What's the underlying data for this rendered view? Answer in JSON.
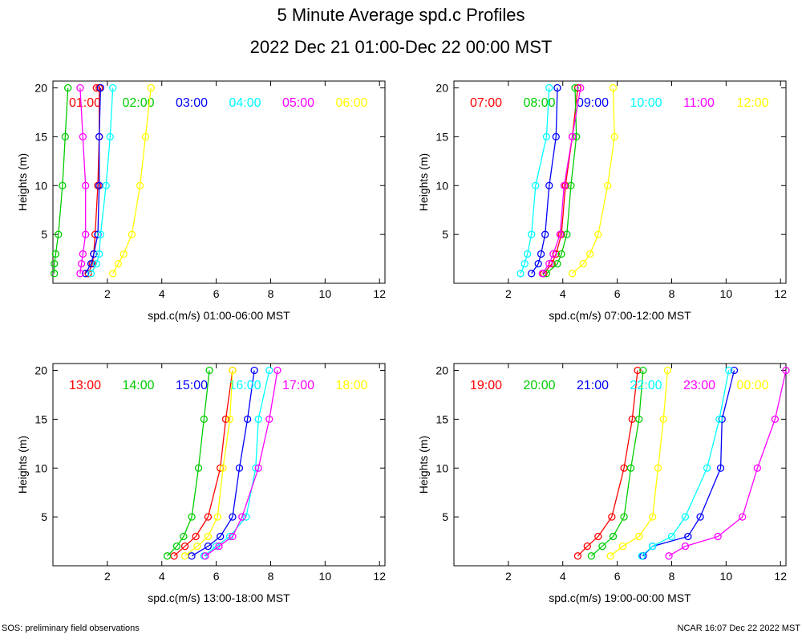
{
  "title": "5 Minute Average spd.c Profiles",
  "subtitle": "2022 Dec 21 01:00-Dec 22 00:00 MST",
  "footer_left": "SOS: preliminary field observations",
  "footer_right": "NCAR 16:07 Dec 22 2022 MST",
  "chart_data": [
    {
      "type": "line",
      "xlabel": "spd.c(m/s) 01:00-06:00 MST",
      "ylabel": "Heights (m)",
      "xlim": [
        0,
        12.2
      ],
      "ylim": [
        0,
        20.7
      ],
      "xticks": [
        2,
        4,
        6,
        8,
        10,
        12
      ],
      "yticks": [
        5,
        10,
        15,
        20
      ],
      "series": [
        {
          "name": "01:00",
          "color": "#ff0000",
          "x": [
            1.3,
            1.45,
            1.5,
            1.55,
            1.65,
            1.7,
            1.7,
            1.6
          ],
          "y": [
            1,
            2,
            3,
            5,
            10,
            15,
            20,
            20
          ]
        },
        {
          "name": "02:00",
          "color": "#00cc00",
          "x": [
            0.05,
            0.05,
            0.1,
            0.2,
            0.35,
            0.45,
            0.55
          ],
          "y": [
            1,
            2,
            3,
            5,
            10,
            15,
            20
          ]
        },
        {
          "name": "03:00",
          "color": "#0000ff",
          "x": [
            1.2,
            1.4,
            1.5,
            1.65,
            1.7,
            1.7,
            1.75
          ],
          "y": [
            1,
            2,
            3,
            5,
            10,
            15,
            20
          ]
        },
        {
          "name": "04:00",
          "color": "#00ffff",
          "x": [
            1.4,
            1.6,
            1.7,
            1.75,
            1.95,
            2.1,
            2.2
          ],
          "y": [
            1,
            2,
            3,
            5,
            10,
            15,
            20
          ]
        },
        {
          "name": "05:00",
          "color": "#ff00ff",
          "x": [
            1.0,
            1.05,
            1.1,
            1.2,
            1.2,
            1.1,
            1.0
          ],
          "y": [
            1,
            2,
            3,
            5,
            10,
            15,
            20
          ]
        },
        {
          "name": "06:00",
          "color": "#ffff00",
          "x": [
            2.2,
            2.4,
            2.6,
            2.9,
            3.2,
            3.4,
            3.6
          ],
          "y": [
            1,
            2,
            3,
            5,
            10,
            15,
            20
          ]
        }
      ]
    },
    {
      "type": "line",
      "xlabel": "spd.c(m/s) 07:00-12:00 MST",
      "ylabel": "Heights (m)",
      "xlim": [
        0,
        12.2
      ],
      "ylim": [
        0,
        20.7
      ],
      "xticks": [
        2,
        4,
        6,
        8,
        10,
        12
      ],
      "yticks": [
        5,
        10,
        15,
        20
      ],
      "series": [
        {
          "name": "07:00",
          "color": "#ff0000",
          "x": [
            3.3,
            3.6,
            3.75,
            3.95,
            4.1,
            4.35,
            4.55
          ],
          "y": [
            1,
            2,
            3,
            5,
            10,
            15,
            20
          ]
        },
        {
          "name": "08:00",
          "color": "#00cc00",
          "x": [
            3.4,
            3.8,
            3.95,
            4.15,
            4.3,
            4.5,
            4.45
          ],
          "y": [
            1,
            2,
            3,
            5,
            10,
            15,
            20
          ]
        },
        {
          "name": "09:00",
          "color": "#0000ff",
          "x": [
            2.85,
            3.1,
            3.2,
            3.35,
            3.5,
            3.75,
            3.8
          ],
          "y": [
            1,
            2,
            3,
            5,
            10,
            15,
            20
          ]
        },
        {
          "name": "10:00",
          "color": "#00ffff",
          "x": [
            2.45,
            2.6,
            2.7,
            2.85,
            3.0,
            3.4,
            3.5
          ],
          "y": [
            1,
            2,
            3,
            5,
            10,
            15,
            20
          ]
        },
        {
          "name": "11:00",
          "color": "#ff00ff",
          "x": [
            3.25,
            3.5,
            3.65,
            3.9,
            4.05,
            4.35,
            4.65
          ],
          "y": [
            1,
            2,
            3,
            5,
            10,
            15,
            20
          ]
        },
        {
          "name": "12:00",
          "color": "#ffff00",
          "x": [
            4.35,
            4.75,
            5.0,
            5.3,
            5.65,
            5.9,
            5.85
          ],
          "y": [
            1,
            2,
            3,
            5,
            10,
            15,
            20
          ]
        }
      ]
    },
    {
      "type": "line",
      "xlabel": "spd.c(m/s) 13:00-18:00 MST",
      "ylabel": "Heights (m)",
      "xlim": [
        0,
        12.2
      ],
      "ylim": [
        0,
        20.7
      ],
      "xticks": [
        2,
        4,
        6,
        8,
        10,
        12
      ],
      "yticks": [
        5,
        10,
        15,
        20
      ],
      "series": [
        {
          "name": "13:00",
          "color": "#ff0000",
          "x": [
            4.45,
            4.85,
            5.25,
            5.7,
            6.15,
            6.35,
            6.6
          ],
          "y": [
            1,
            2,
            3,
            5,
            10,
            15,
            20
          ]
        },
        {
          "name": "14:00",
          "color": "#00cc00",
          "x": [
            4.2,
            4.55,
            4.8,
            5.1,
            5.35,
            5.55,
            5.75
          ],
          "y": [
            1,
            2,
            3,
            5,
            10,
            15,
            20
          ]
        },
        {
          "name": "15:00",
          "color": "#0000ff",
          "x": [
            5.1,
            5.7,
            6.15,
            6.6,
            6.85,
            7.15,
            7.4
          ],
          "y": [
            1,
            2,
            3,
            5,
            10,
            15,
            20
          ]
        },
        {
          "name": "16:00",
          "color": "#00ffff",
          "x": [
            5.55,
            6.0,
            6.5,
            7.1,
            7.45,
            7.55,
            7.95
          ],
          "y": [
            1,
            2,
            3,
            5,
            10,
            15,
            20
          ]
        },
        {
          "name": "17:00",
          "color": "#ff00ff",
          "x": [
            5.6,
            6.1,
            6.6,
            6.95,
            7.55,
            7.95,
            8.25
          ],
          "y": [
            1,
            2,
            3,
            5,
            10,
            15,
            20
          ]
        },
        {
          "name": "18:00",
          "color": "#ffff00",
          "x": [
            4.85,
            5.3,
            5.7,
            6.05,
            6.25,
            6.5,
            6.6
          ],
          "y": [
            1,
            2,
            3,
            5,
            10,
            15,
            20
          ]
        }
      ]
    },
    {
      "type": "line",
      "xlabel": "spd.c(m/s) 19:00-00:00 MST",
      "ylabel": "Heights (m)",
      "xlim": [
        0,
        12.2
      ],
      "ylim": [
        0,
        20.7
      ],
      "xticks": [
        2,
        4,
        6,
        8,
        10,
        12
      ],
      "yticks": [
        5,
        10,
        15,
        20
      ],
      "series": [
        {
          "name": "19:00",
          "color": "#ff0000",
          "x": [
            4.55,
            4.9,
            5.3,
            5.8,
            6.25,
            6.55,
            6.75
          ],
          "y": [
            1,
            2,
            3,
            5,
            10,
            15,
            20
          ]
        },
        {
          "name": "20:00",
          "color": "#00cc00",
          "x": [
            5.05,
            5.45,
            5.85,
            6.25,
            6.5,
            6.8,
            6.95
          ],
          "y": [
            1,
            2,
            3,
            5,
            10,
            15,
            20
          ]
        },
        {
          "name": "21:00",
          "color": "#0000ff",
          "x": [
            6.95,
            7.3,
            8.6,
            9.05,
            9.8,
            9.85,
            10.3
          ],
          "y": [
            1,
            2,
            3,
            5,
            10,
            15,
            20
          ]
        },
        {
          "name": "22:00",
          "color": "#00ffff",
          "x": [
            6.9,
            7.3,
            8.0,
            8.5,
            9.3,
            9.75,
            10.1
          ],
          "y": [
            1,
            2,
            3,
            5,
            10,
            15,
            20
          ]
        },
        {
          "name": "23:00",
          "color": "#ff00ff",
          "x": [
            7.9,
            8.5,
            9.7,
            10.6,
            11.15,
            11.8,
            12.2
          ],
          "y": [
            1,
            2,
            3,
            5,
            10,
            15,
            20
          ]
        },
        {
          "name": "00:00",
          "color": "#ffff00",
          "x": [
            5.75,
            6.2,
            6.8,
            7.3,
            7.5,
            7.7,
            7.85
          ],
          "y": [
            1,
            2,
            3,
            5,
            10,
            15,
            20
          ]
        }
      ]
    }
  ]
}
